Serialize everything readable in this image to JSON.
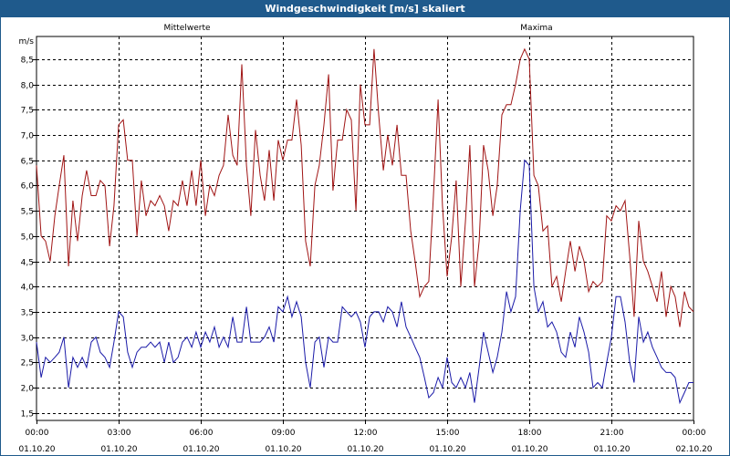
{
  "window": {
    "title": "Windgeschwindigkeit [m/s] skaliert"
  },
  "chart_data": {
    "type": "line",
    "title": "Windgeschwindigkeit [m/s] skaliert",
    "ylabel": "m/s",
    "ylim": [
      1.35,
      8.95
    ],
    "yticks": [
      "1,5",
      "2,0",
      "2,5",
      "3,0",
      "3,5",
      "4,0",
      "4,5",
      "5,0",
      "5,5",
      "6,0",
      "6,5",
      "7,0",
      "7,5",
      "8,0",
      "8,5"
    ],
    "xlim": [
      0,
      24
    ],
    "xticks": [
      {
        "time": "00:00",
        "date": "01.10.20"
      },
      {
        "time": "03:00",
        "date": "01.10.20"
      },
      {
        "time": "06:00",
        "date": "01.10.20"
      },
      {
        "time": "09:00",
        "date": "01.10.20"
      },
      {
        "time": "12:00",
        "date": "01.10.20"
      },
      {
        "time": "15:00",
        "date": "01.10.20"
      },
      {
        "time": "18:00",
        "date": "01.10.20"
      },
      {
        "time": "21:00",
        "date": "01.10.20"
      },
      {
        "time": "00:00",
        "date": "02.10.20"
      }
    ],
    "grid": true,
    "colors": {
      "Mittelwerte": "#1a1aa8",
      "Maxima": "#a01414"
    },
    "series": [
      {
        "name": "Mittelwerte",
        "points": [
          [
            0,
            2.9
          ],
          [
            0.17,
            2.2
          ],
          [
            0.33,
            2.6
          ],
          [
            0.5,
            2.5
          ],
          [
            0.67,
            2.6
          ],
          [
            0.83,
            2.7
          ],
          [
            1,
            3.0
          ],
          [
            1.17,
            2.0
          ],
          [
            1.33,
            2.6
          ],
          [
            1.5,
            2.4
          ],
          [
            1.67,
            2.6
          ],
          [
            1.83,
            2.4
          ],
          [
            2,
            2.9
          ],
          [
            2.17,
            3.0
          ],
          [
            2.33,
            2.7
          ],
          [
            2.5,
            2.6
          ],
          [
            2.67,
            2.4
          ],
          [
            2.83,
            2.9
          ],
          [
            3,
            3.5
          ],
          [
            3.17,
            3.4
          ],
          [
            3.33,
            2.7
          ],
          [
            3.5,
            2.4
          ],
          [
            3.67,
            2.7
          ],
          [
            3.83,
            2.8
          ],
          [
            4,
            2.8
          ],
          [
            4.17,
            2.9
          ],
          [
            4.33,
            2.8
          ],
          [
            4.5,
            2.9
          ],
          [
            4.67,
            2.5
          ],
          [
            4.83,
            2.9
          ],
          [
            5,
            2.5
          ],
          [
            5.17,
            2.6
          ],
          [
            5.33,
            2.9
          ],
          [
            5.5,
            3.0
          ],
          [
            5.67,
            2.8
          ],
          [
            5.83,
            3.1
          ],
          [
            6,
            2.8
          ],
          [
            6.17,
            3.1
          ],
          [
            6.33,
            2.9
          ],
          [
            6.5,
            3.2
          ],
          [
            6.67,
            2.8
          ],
          [
            6.83,
            3.0
          ],
          [
            7,
            2.8
          ],
          [
            7.17,
            3.4
          ],
          [
            7.33,
            2.9
          ],
          [
            7.5,
            2.9
          ],
          [
            7.67,
            3.6
          ],
          [
            7.83,
            2.9
          ],
          [
            8,
            2.9
          ],
          [
            8.17,
            2.9
          ],
          [
            8.33,
            3.0
          ],
          [
            8.5,
            3.2
          ],
          [
            8.67,
            2.9
          ],
          [
            8.83,
            3.6
          ],
          [
            9,
            3.5
          ],
          [
            9.17,
            3.8
          ],
          [
            9.33,
            3.4
          ],
          [
            9.5,
            3.7
          ],
          [
            9.67,
            3.4
          ],
          [
            9.83,
            2.5
          ],
          [
            10,
            2.0
          ],
          [
            10.17,
            2.9
          ],
          [
            10.33,
            3.0
          ],
          [
            10.5,
            2.4
          ],
          [
            10.67,
            3.0
          ],
          [
            10.83,
            2.9
          ],
          [
            11,
            2.9
          ],
          [
            11.17,
            3.6
          ],
          [
            11.33,
            3.5
          ],
          [
            11.5,
            3.4
          ],
          [
            11.67,
            3.5
          ],
          [
            11.83,
            3.3
          ],
          [
            12,
            2.8
          ],
          [
            12.17,
            3.4
          ],
          [
            12.33,
            3.5
          ],
          [
            12.5,
            3.5
          ],
          [
            12.67,
            3.3
          ],
          [
            12.83,
            3.6
          ],
          [
            13,
            3.5
          ],
          [
            13.17,
            3.2
          ],
          [
            13.33,
            3.7
          ],
          [
            13.5,
            3.2
          ],
          [
            13.67,
            3.0
          ],
          [
            13.83,
            2.8
          ],
          [
            14,
            2.6
          ],
          [
            14.17,
            2.2
          ],
          [
            14.33,
            1.8
          ],
          [
            14.5,
            1.9
          ],
          [
            14.67,
            2.2
          ],
          [
            14.83,
            2.0
          ],
          [
            15,
            2.6
          ],
          [
            15.17,
            2.1
          ],
          [
            15.33,
            2.0
          ],
          [
            15.5,
            2.2
          ],
          [
            15.67,
            2.0
          ],
          [
            15.83,
            2.3
          ],
          [
            16,
            1.7
          ],
          [
            16.17,
            2.4
          ],
          [
            16.33,
            3.1
          ],
          [
            16.5,
            2.7
          ],
          [
            16.67,
            2.3
          ],
          [
            16.83,
            2.6
          ],
          [
            17,
            3.1
          ],
          [
            17.17,
            3.9
          ],
          [
            17.33,
            3.5
          ],
          [
            17.5,
            3.8
          ],
          [
            17.67,
            5.5
          ],
          [
            17.83,
            6.5
          ],
          [
            18,
            6.4
          ],
          [
            18.17,
            4.0
          ],
          [
            18.33,
            3.5
          ],
          [
            18.5,
            3.7
          ],
          [
            18.67,
            3.2
          ],
          [
            18.83,
            3.3
          ],
          [
            19,
            3.1
          ],
          [
            19.17,
            2.7
          ],
          [
            19.33,
            2.6
          ],
          [
            19.5,
            3.1
          ],
          [
            19.67,
            2.8
          ],
          [
            19.83,
            3.4
          ],
          [
            20,
            3.1
          ],
          [
            20.17,
            2.7
          ],
          [
            20.33,
            2.0
          ],
          [
            20.5,
            2.1
          ],
          [
            20.67,
            2.0
          ],
          [
            20.83,
            2.5
          ],
          [
            21,
            3.0
          ],
          [
            21.17,
            3.8
          ],
          [
            21.33,
            3.8
          ],
          [
            21.5,
            3.3
          ],
          [
            21.67,
            2.5
          ],
          [
            21.83,
            2.1
          ],
          [
            22,
            3.4
          ],
          [
            22.17,
            2.9
          ],
          [
            22.33,
            3.1
          ],
          [
            22.5,
            2.8
          ],
          [
            22.67,
            2.6
          ],
          [
            22.83,
            2.4
          ],
          [
            23,
            2.3
          ],
          [
            23.17,
            2.3
          ],
          [
            23.33,
            2.2
          ],
          [
            23.5,
            1.7
          ],
          [
            23.67,
            1.9
          ],
          [
            23.83,
            2.1
          ],
          [
            24,
            2.1
          ]
        ]
      },
      {
        "name": "Maxima",
        "points": [
          [
            0,
            6.4
          ],
          [
            0.17,
            5.0
          ],
          [
            0.33,
            4.9
          ],
          [
            0.5,
            4.5
          ],
          [
            0.67,
            5.4
          ],
          [
            0.83,
            6.0
          ],
          [
            1,
            6.6
          ],
          [
            1.17,
            4.4
          ],
          [
            1.33,
            5.7
          ],
          [
            1.5,
            4.9
          ],
          [
            1.67,
            5.8
          ],
          [
            1.83,
            6.3
          ],
          [
            2,
            5.8
          ],
          [
            2.17,
            5.8
          ],
          [
            2.33,
            6.1
          ],
          [
            2.5,
            6.0
          ],
          [
            2.67,
            4.8
          ],
          [
            2.83,
            5.6
          ],
          [
            3,
            7.2
          ],
          [
            3.17,
            7.3
          ],
          [
            3.33,
            6.5
          ],
          [
            3.5,
            6.5
          ],
          [
            3.67,
            5.0
          ],
          [
            3.83,
            6.1
          ],
          [
            4,
            5.4
          ],
          [
            4.17,
            5.7
          ],
          [
            4.33,
            5.6
          ],
          [
            4.5,
            5.8
          ],
          [
            4.67,
            5.6
          ],
          [
            4.83,
            5.1
          ],
          [
            5,
            5.7
          ],
          [
            5.17,
            5.6
          ],
          [
            5.33,
            6.1
          ],
          [
            5.5,
            5.6
          ],
          [
            5.67,
            6.3
          ],
          [
            5.83,
            5.6
          ],
          [
            6,
            6.5
          ],
          [
            6.17,
            5.4
          ],
          [
            6.33,
            6.0
          ],
          [
            6.5,
            5.8
          ],
          [
            6.67,
            6.2
          ],
          [
            6.83,
            6.4
          ],
          [
            7,
            7.4
          ],
          [
            7.17,
            6.6
          ],
          [
            7.33,
            6.4
          ],
          [
            7.5,
            8.4
          ],
          [
            7.67,
            6.4
          ],
          [
            7.83,
            5.4
          ],
          [
            8,
            7.1
          ],
          [
            8.17,
            6.2
          ],
          [
            8.33,
            5.7
          ],
          [
            8.5,
            6.7
          ],
          [
            8.67,
            5.7
          ],
          [
            8.83,
            6.9
          ],
          [
            9,
            6.5
          ],
          [
            9.17,
            6.9
          ],
          [
            9.33,
            6.9
          ],
          [
            9.5,
            7.7
          ],
          [
            9.67,
            6.8
          ],
          [
            9.83,
            4.9
          ],
          [
            10,
            4.4
          ],
          [
            10.17,
            6.0
          ],
          [
            10.33,
            6.4
          ],
          [
            10.5,
            7.2
          ],
          [
            10.67,
            8.2
          ],
          [
            10.83,
            5.9
          ],
          [
            11,
            6.9
          ],
          [
            11.17,
            6.9
          ],
          [
            11.33,
            7.5
          ],
          [
            11.5,
            7.3
          ],
          [
            11.67,
            5.5
          ],
          [
            11.83,
            8.0
          ],
          [
            12,
            7.2
          ],
          [
            12.17,
            7.2
          ],
          [
            12.33,
            8.7
          ],
          [
            12.5,
            7.4
          ],
          [
            12.67,
            6.3
          ],
          [
            12.83,
            7.0
          ],
          [
            13,
            6.4
          ],
          [
            13.17,
            7.2
          ],
          [
            13.33,
            6.2
          ],
          [
            13.5,
            6.2
          ],
          [
            13.67,
            5.1
          ],
          [
            13.83,
            4.5
          ],
          [
            14,
            3.8
          ],
          [
            14.17,
            4.0
          ],
          [
            14.33,
            4.1
          ],
          [
            14.5,
            5.8
          ],
          [
            14.67,
            7.7
          ],
          [
            14.83,
            5.6
          ],
          [
            15,
            4.2
          ],
          [
            15.17,
            5.0
          ],
          [
            15.33,
            6.1
          ],
          [
            15.5,
            4.0
          ],
          [
            15.67,
            5.3
          ],
          [
            15.83,
            6.8
          ],
          [
            16,
            4.0
          ],
          [
            16.17,
            4.9
          ],
          [
            16.33,
            6.8
          ],
          [
            16.5,
            6.3
          ],
          [
            16.67,
            5.4
          ],
          [
            16.83,
            6.0
          ],
          [
            17,
            7.4
          ],
          [
            17.17,
            7.6
          ],
          [
            17.33,
            7.6
          ],
          [
            17.5,
            8.0
          ],
          [
            17.67,
            8.5
          ],
          [
            17.83,
            8.7
          ],
          [
            18,
            8.5
          ],
          [
            18.17,
            6.2
          ],
          [
            18.33,
            6.0
          ],
          [
            18.5,
            5.1
          ],
          [
            18.67,
            5.2
          ],
          [
            18.83,
            4.0
          ],
          [
            19,
            4.2
          ],
          [
            19.17,
            3.7
          ],
          [
            19.33,
            4.3
          ],
          [
            19.5,
            4.9
          ],
          [
            19.67,
            4.3
          ],
          [
            19.83,
            4.8
          ],
          [
            20,
            4.5
          ],
          [
            20.17,
            3.9
          ],
          [
            20.33,
            4.1
          ],
          [
            20.5,
            4.0
          ],
          [
            20.67,
            4.1
          ],
          [
            20.83,
            5.4
          ],
          [
            21,
            5.3
          ],
          [
            21.17,
            5.6
          ],
          [
            21.33,
            5.5
          ],
          [
            21.5,
            5.7
          ],
          [
            21.67,
            4.6
          ],
          [
            21.83,
            3.4
          ],
          [
            22,
            5.3
          ],
          [
            22.17,
            4.5
          ],
          [
            22.33,
            4.3
          ],
          [
            22.5,
            4.0
          ],
          [
            22.67,
            3.7
          ],
          [
            22.83,
            4.3
          ],
          [
            23,
            3.4
          ],
          [
            23.17,
            4.0
          ],
          [
            23.33,
            3.8
          ],
          [
            23.5,
            3.2
          ],
          [
            23.67,
            3.9
          ],
          [
            23.83,
            3.6
          ],
          [
            24,
            3.5
          ]
        ]
      }
    ]
  }
}
